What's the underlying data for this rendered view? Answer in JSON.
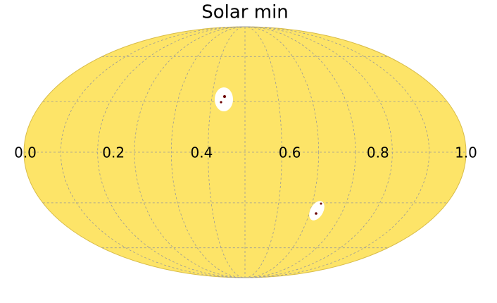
{
  "chart_data": {
    "type": "map",
    "title": "Solar min",
    "color": "#fde468",
    "xlim": [
      0,
      1
    ],
    "xticks": [
      {
        "value": 0,
        "label": "0.0"
      },
      {
        "value": 0.2,
        "label": "0.2"
      },
      {
        "value": 0.4,
        "label": "0.4"
      },
      {
        "value": 0.6,
        "label": "0.6"
      },
      {
        "value": 0.8,
        "label": "0.8"
      },
      {
        "value": 1,
        "label": "1.0"
      }
    ],
    "grid": true
  }
}
